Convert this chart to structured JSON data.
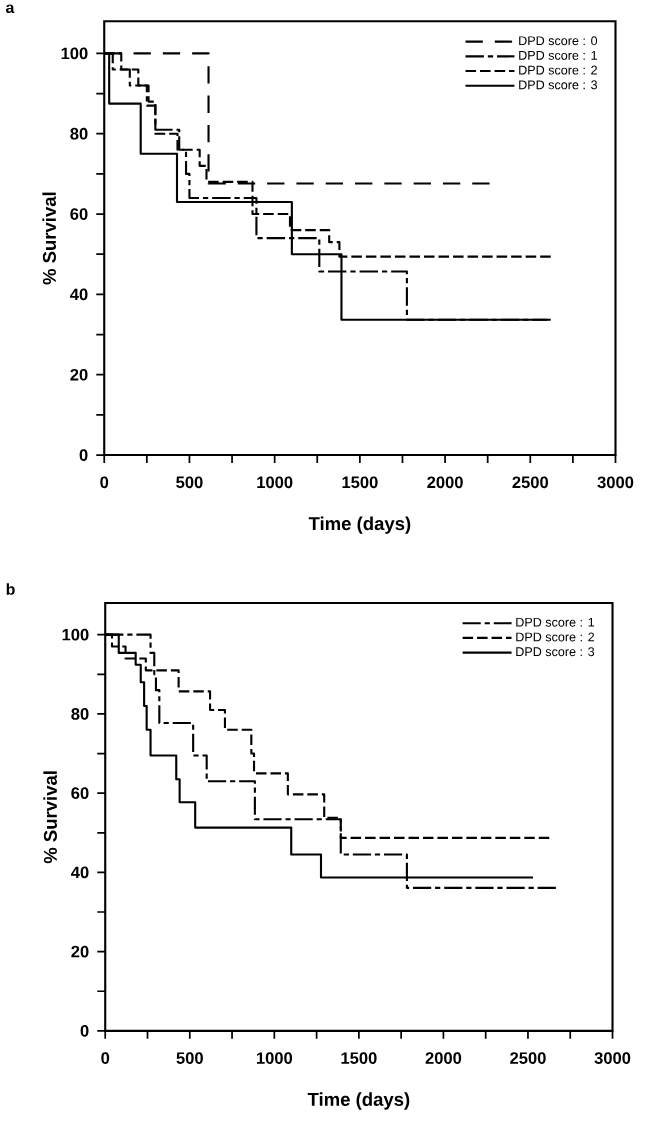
{
  "chart_data": [
    {
      "type": "step",
      "title": "a",
      "xlabel": "Time (days)",
      "ylabel": "% Survival",
      "legend": "top right",
      "grid": false,
      "xlim": [
        0,
        3000
      ],
      "ylim": [
        0,
        108
      ],
      "xticks": [
        0,
        {
          "value": 250,
          "label": null
        },
        500,
        {
          "value": 750,
          "label": null
        },
        1000,
        {
          "value": 1250,
          "label": null
        },
        1500,
        {
          "value": 1750,
          "label": null
        },
        2000,
        {
          "value": 2250,
          "label": null
        },
        2500,
        {
          "value": 2750,
          "label": null
        },
        3000
      ],
      "yticks": [
        0,
        {
          "value": 10,
          "label": null
        },
        20,
        {
          "value": 30,
          "label": null
        },
        40,
        {
          "value": 50,
          "label": null
        },
        60,
        {
          "value": 70,
          "label": null
        },
        80,
        {
          "value": 90,
          "label": null
        },
        100
      ],
      "series": [
        {
          "name": "DPD score : 0",
          "color": "#000000",
          "line_style": "dashed",
          "x": [
            0,
            612,
            2261
          ],
          "values": [
            100,
            67.6,
            67.6
          ]
        },
        {
          "name": "DPD score : 1",
          "color": "#000000",
          "line_style": "dashed",
          "x": [
            0,
            50,
            150,
            250,
            300,
            440,
            480,
            500,
            893,
            1262,
            1776,
            2620
          ],
          "values": [
            100,
            96,
            92,
            87,
            81,
            76,
            70,
            64,
            54,
            45.7,
            33.7,
            33.7
          ]
        },
        {
          "name": "DPD score : 2",
          "color": "#000000",
          "line_style": "dashed",
          "x": [
            0,
            100,
            200,
            260,
            300,
            430,
            560,
            600,
            830,
            870,
            1090,
            1320,
            1380,
            2620
          ],
          "values": [
            100,
            96,
            92,
            88,
            80,
            76,
            72,
            68,
            68,
            60,
            56,
            53,
            49.4,
            49.4
          ]
        },
        {
          "name": "DPD score : 3",
          "color": "#000000",
          "line_style": "solid",
          "x": [
            0,
            29,
            214,
            427,
            1101,
            1392,
            2600
          ],
          "values": [
            100,
            87.5,
            75,
            63,
            50,
            33.7,
            33.7
          ]
        }
      ]
    },
    {
      "type": "step",
      "title": "b",
      "xlabel": "Time (days)",
      "ylabel": "% Survival",
      "legend": "top right",
      "grid": false,
      "xlim": [
        0,
        3000
      ],
      "ylim": [
        0,
        108
      ],
      "xticks": [
        0,
        {
          "value": 250,
          "label": null
        },
        500,
        {
          "value": 750,
          "label": null
        },
        1000,
        {
          "value": 1250,
          "label": null
        },
        1500,
        {
          "value": 1750,
          "label": null
        },
        2000,
        {
          "value": 2250,
          "label": null
        },
        2500,
        {
          "value": 2750,
          "label": null
        },
        3000
      ],
      "yticks": [
        0,
        {
          "value": 10,
          "label": null
        },
        20,
        {
          "value": 30,
          "label": null
        },
        40,
        {
          "value": 50,
          "label": null
        },
        60,
        {
          "value": 70,
          "label": null
        },
        80,
        {
          "value": 90,
          "label": null
        },
        100
      ],
      "series": [
        {
          "name": "DPD score : 1",
          "color": "#000000",
          "line_style": "dashed",
          "x": [
            0,
            268,
            290,
            300,
            320,
            520,
            600,
            885,
            1393,
            1784,
            2665
          ],
          "values": [
            100,
            95.4,
            90,
            86,
            77.7,
            69.5,
            63,
            53.4,
            44.5,
            36.1,
            36.1
          ]
        },
        {
          "name": "DPD score : 2",
          "color": "#000000",
          "line_style": "dashed",
          "x": [
            0,
            40,
            120,
            240,
            434,
            620,
            708,
            864,
            880,
            1080,
            1295,
            1393,
            2626
          ],
          "values": [
            100,
            97,
            94,
            91,
            85.7,
            81,
            76,
            70,
            65,
            59.7,
            53.8,
            48.7,
            48.7
          ]
        },
        {
          "name": "DPD score : 3",
          "color": "#000000",
          "line_style": "solid",
          "x": [
            0,
            80,
            180,
            210,
            230,
            245,
            268,
            420,
            440,
            532,
            1100,
            1276,
            2530
          ],
          "values": [
            100,
            95.4,
            92.4,
            88,
            82,
            76,
            69.5,
            63.5,
            57.7,
            51.3,
            44.5,
            38.7,
            38.7
          ]
        }
      ]
    }
  ]
}
